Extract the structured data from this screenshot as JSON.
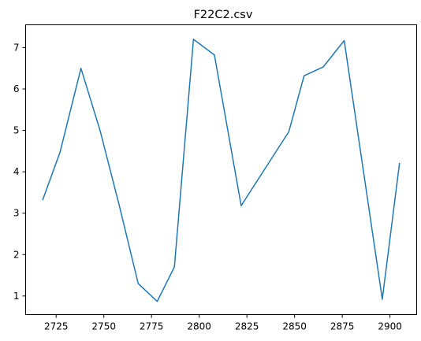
{
  "chart_data": {
    "type": "line",
    "title": "F22C2.csv",
    "xlabel": "",
    "ylabel": "",
    "xlim": [
      2709,
      2914
    ],
    "ylim": [
      0.55,
      7.55
    ],
    "xticks": [
      2725,
      2750,
      2775,
      2800,
      2825,
      2850,
      2875,
      2900
    ],
    "xtick_labels": [
      "2725",
      "2750",
      "2775",
      "2800",
      "2825",
      "2850",
      "2875",
      "2900"
    ],
    "yticks": [
      1,
      2,
      3,
      4,
      5,
      6,
      7
    ],
    "ytick_labels": [
      "1",
      "2",
      "3",
      "4",
      "5",
      "6",
      "7"
    ],
    "grid": false,
    "series": [
      {
        "color": "#1f77b4",
        "x": [
          2718,
          2727,
          2738,
          2748,
          2758,
          2768,
          2778,
          2787,
          2797,
          2808,
          2822,
          2847,
          2855,
          2865,
          2876,
          2896,
          2905
        ],
        "y": [
          3.33,
          4.47,
          6.5,
          5.0,
          3.2,
          1.3,
          0.87,
          1.7,
          7.2,
          6.82,
          3.18,
          4.97,
          6.32,
          6.53,
          7.17,
          0.92,
          4.2
        ]
      }
    ]
  }
}
